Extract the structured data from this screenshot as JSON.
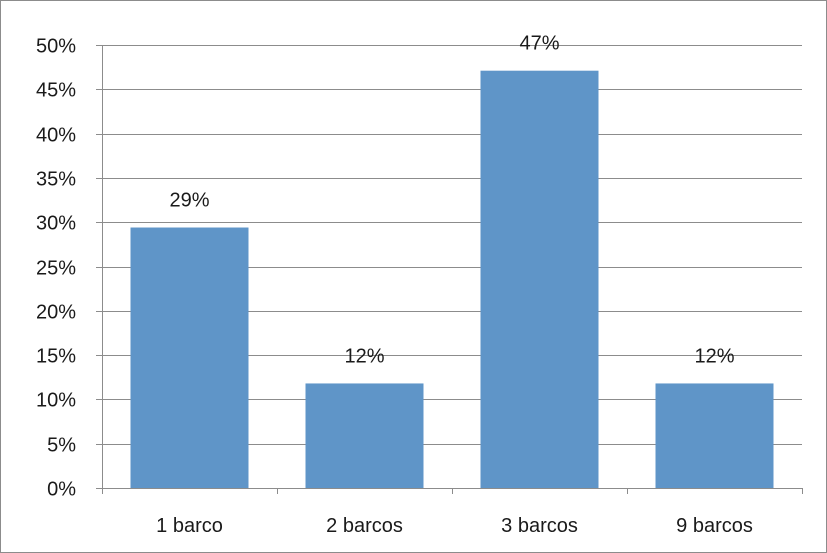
{
  "chart_data": {
    "type": "bar",
    "categories": [
      "1 barco",
      "2 barcos",
      "3 barcos",
      "9 barcos"
    ],
    "values": [
      29.4,
      11.8,
      47.1,
      11.8
    ],
    "data_labels": [
      "29%",
      "12%",
      "47%",
      "12%"
    ],
    "y_ticks": [
      0,
      5,
      10,
      15,
      20,
      25,
      30,
      35,
      40,
      45,
      50
    ],
    "y_tick_labels": [
      "0%",
      "5%",
      "10%",
      "15%",
      "20%",
      "25%",
      "30%",
      "35%",
      "40%",
      "45%",
      "50%"
    ],
    "ylim": [
      0,
      50
    ],
    "title": "",
    "xlabel": "",
    "ylabel": "",
    "grid": "horizontal",
    "legend": "none",
    "colors": {
      "bar": "#5f95c8",
      "grid": "#8c8c8c",
      "axis": "#8c8c8c",
      "text": "#1a1a1a"
    }
  }
}
